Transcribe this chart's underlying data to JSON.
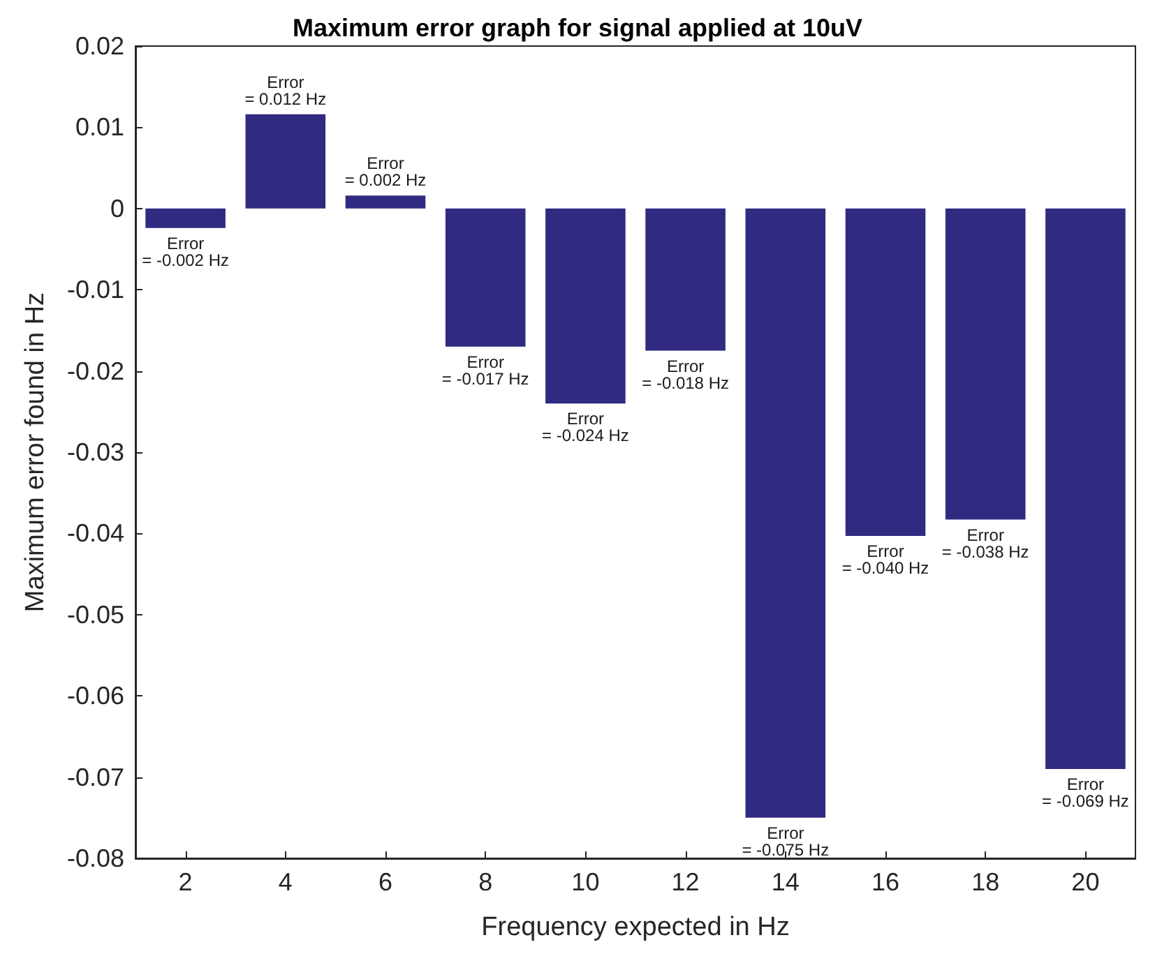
{
  "chart_data": {
    "type": "bar",
    "title": "Maximum error graph for signal applied at 10uV",
    "xlabel": "Frequency expected in Hz",
    "ylabel": "Maximum error found in Hz",
    "categories": [
      "2",
      "4",
      "6",
      "8",
      "10",
      "12",
      "14",
      "16",
      "18",
      "20"
    ],
    "values": [
      -0.0024,
      0.0116,
      0.0016,
      -0.017,
      -0.024,
      -0.0175,
      -0.075,
      -0.0403,
      -0.0383,
      -0.069
    ],
    "value_labels": [
      "Error\n= -0.002 Hz",
      "Error\n= 0.012 Hz",
      "Error\n= 0.002 Hz",
      "Error\n= -0.017 Hz",
      "Error\n= -0.024 Hz",
      "Error\n= -0.018 Hz",
      "Error\n= -0.075 Hz",
      "Error\n= -0.040 Hz",
      "Error\n= -0.038 Hz",
      "Error\n= -0.069 Hz"
    ],
    "color": "#302a80",
    "ylim": [
      -0.08,
      0.02
    ],
    "yticks": [
      -0.08,
      -0.07,
      -0.06,
      -0.05,
      -0.04,
      -0.03,
      -0.02,
      -0.01,
      0,
      0.01,
      0.02
    ],
    "grid": false
  }
}
